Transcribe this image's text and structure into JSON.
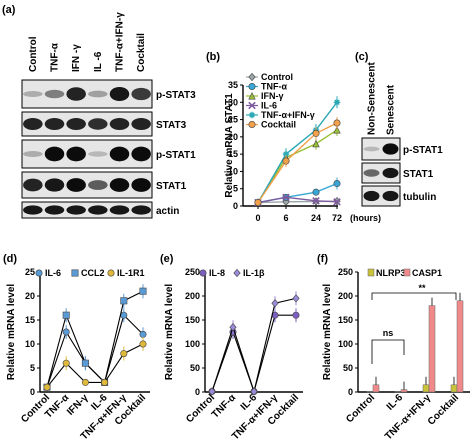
{
  "panel_a": {
    "letter": "(a)",
    "lanes": [
      "Control",
      "TNF-α",
      "IFN -γ",
      "IL -6",
      "TNF-α+IFN-γ",
      "Cocktail"
    ],
    "blots": [
      "p-STAT3",
      "STAT3",
      "p-STAT1",
      "STAT1",
      "actin"
    ]
  },
  "panel_c": {
    "letter": "(c)",
    "lanes": [
      "Non-Senescent",
      "Senescent"
    ],
    "blots": [
      "p-STAT1",
      "STAT1",
      "tubulin"
    ]
  },
  "colors": {
    "control": "#9aa7a8",
    "tnf": "#39a7d6",
    "ifn": "#9bbf36",
    "il6": "#7d5a9e",
    "combo": "#2aa9b5",
    "cocktail": "#f2a04a",
    "il6_d": "#5b9bd5",
    "ccl2_d": "#5b9bd5",
    "il1r1_d": "#e0b93a",
    "il8_e": "#7b5fbf",
    "il1b_e": "#9b8ad8",
    "nlrp3": "#c9c23a",
    "casp1": "#f08a8a"
  },
  "chart_data": [
    {
      "panel": "(b)",
      "type": "line",
      "ylabel": "Relative mRNA STAT1",
      "xunit": "(hours)",
      "x": [
        0,
        6,
        24,
        72
      ],
      "ylim": [
        0,
        35
      ],
      "yticks": [
        0,
        5,
        10,
        15,
        20,
        25,
        30,
        35
      ],
      "legend_position": "top-left",
      "series": [
        {
          "name": "Control",
          "color_key": "control",
          "marker": "diamond",
          "values": [
            1,
            1.2,
            1.3,
            1.4
          ]
        },
        {
          "name": "TNF-α",
          "color_key": "tnf",
          "marker": "circle",
          "values": [
            1,
            2.5,
            4,
            6.5
          ]
        },
        {
          "name": "IFN-γ",
          "color_key": "ifn",
          "marker": "triangle",
          "values": [
            1,
            14,
            18,
            22
          ]
        },
        {
          "name": "IL-6",
          "color_key": "il6",
          "marker": "x",
          "values": [
            1,
            2.5,
            1.5,
            1.2
          ]
        },
        {
          "name": "TNF-α+IFN-γ",
          "color_key": "combo",
          "marker": "star",
          "values": [
            1,
            15,
            22,
            30
          ]
        },
        {
          "name": "Cocktail",
          "color_key": "cocktail",
          "marker": "circle",
          "values": [
            1,
            13,
            21,
            24
          ]
        }
      ]
    },
    {
      "panel": "(d)",
      "type": "line",
      "ylabel": "Relative mRNA level",
      "categories": [
        "Control",
        "TNF-α",
        "IFN-γ",
        "IL-6",
        "TNF-α+IFN-γ",
        "Cocktail"
      ],
      "ylim": [
        0,
        25
      ],
      "yticks": [
        0,
        5,
        10,
        15,
        20,
        25
      ],
      "legend_position": "top",
      "series": [
        {
          "name": "IL-6",
          "color_key": "il6_d",
          "marker": "circle",
          "values": [
            1,
            12.5,
            6,
            2,
            16,
            12
          ]
        },
        {
          "name": "CCL2",
          "color_key": "ccl2_d",
          "marker": "square",
          "values": [
            1,
            16,
            6,
            2,
            19,
            21
          ]
        },
        {
          "name": "IL-1R1",
          "color_key": "il1r1_d",
          "marker": "circle",
          "values": [
            1,
            6,
            2,
            2,
            8,
            10
          ]
        }
      ]
    },
    {
      "panel": "(e)",
      "type": "line",
      "ylabel": "Relative mRNA level",
      "categories": [
        "Control",
        "TNF-α",
        "IL-6",
        "TNF-α+IFN-γ",
        "Cocktail"
      ],
      "ylim": [
        0,
        250
      ],
      "yticks": [
        0,
        50,
        100,
        150,
        200,
        250
      ],
      "legend_position": "top",
      "series": [
        {
          "name": "IL-8",
          "color_key": "il8_e",
          "marker": "circle",
          "values": [
            1,
            125,
            1,
            160,
            160
          ]
        },
        {
          "name": "IL-1β",
          "color_key": "il1b_e",
          "marker": "diamond",
          "values": [
            1,
            135,
            1,
            185,
            195
          ]
        }
      ]
    },
    {
      "panel": "(f)",
      "type": "bar",
      "ylabel": "Relative mRNA level",
      "categories": [
        "Control",
        "IL-6",
        "TNF-α+IFN-γ",
        "Cocktail"
      ],
      "ylim": [
        0,
        250
      ],
      "yticks": [
        0,
        50,
        100,
        150,
        200,
        250
      ],
      "legend_position": "top",
      "series": [
        {
          "name": "NLRP3",
          "color_key": "nlrp3",
          "values": [
            1,
            1,
            15,
            15
          ]
        },
        {
          "name": "CASP1",
          "color_key": "casp1",
          "values": [
            15,
            5,
            180,
            190
          ]
        }
      ],
      "annotations": [
        "ns",
        "**"
      ]
    }
  ]
}
